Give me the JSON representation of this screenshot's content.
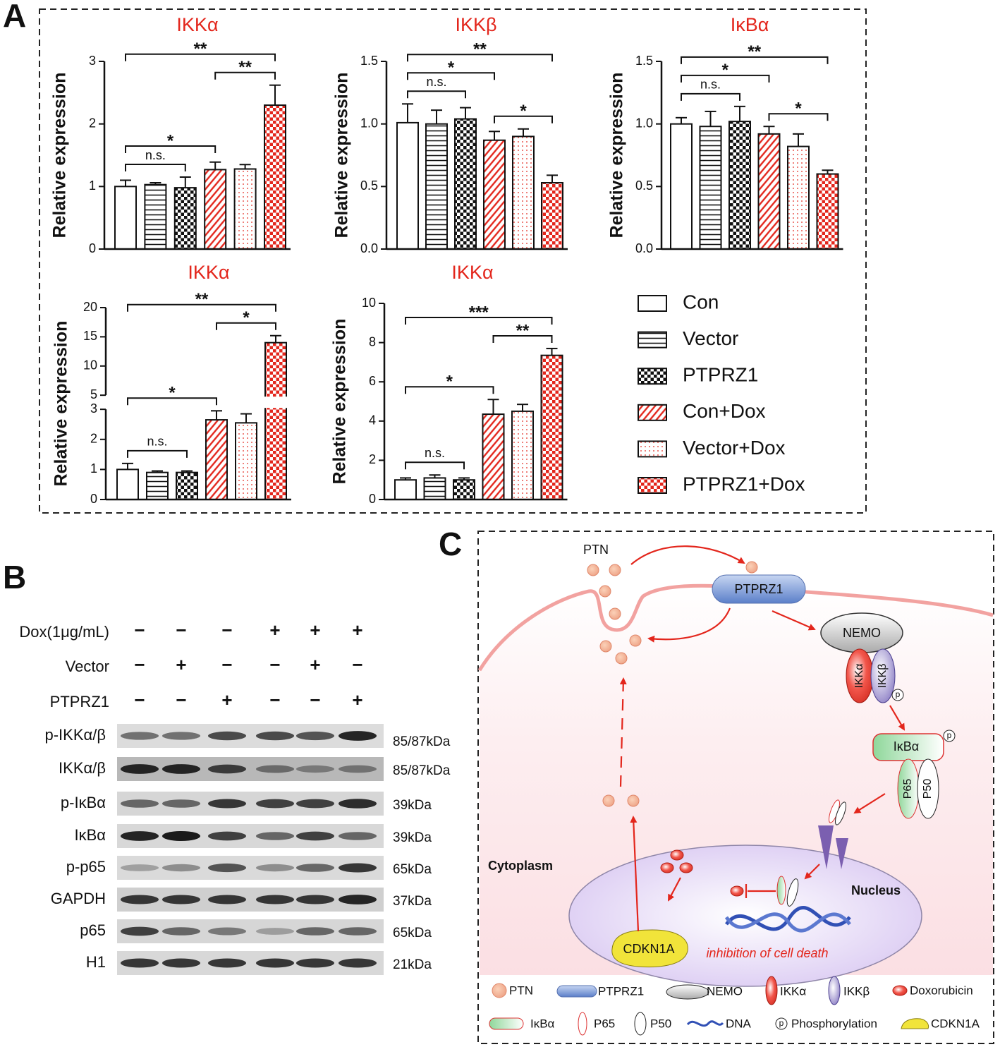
{
  "panels": {
    "a": "A",
    "b": "B",
    "c": "C"
  },
  "chart_data": [
    {
      "type": "bar",
      "title": "IKKα",
      "ylabel": "Relative expression",
      "values": [
        1.0,
        1.03,
        0.98,
        1.27,
        1.28,
        2.3
      ],
      "errors": [
        0.1,
        0.03,
        0.17,
        0.12,
        0.07,
        0.32
      ],
      "ylim": [
        0,
        3
      ],
      "yticks": [
        0,
        1,
        2,
        3
      ],
      "significance": [
        {
          "from": 0,
          "to": 2,
          "label": "n.s."
        },
        {
          "from": 0,
          "to": 3,
          "label": "*"
        },
        {
          "from": 3,
          "to": 5,
          "label": "**"
        },
        {
          "from": 0,
          "to": 5,
          "label": "**"
        }
      ]
    },
    {
      "type": "bar",
      "title": "IKKβ",
      "ylabel": "Relative expression",
      "values": [
        1.01,
        1.0,
        1.04,
        0.87,
        0.9,
        0.53
      ],
      "errors": [
        0.15,
        0.11,
        0.09,
        0.07,
        0.06,
        0.06
      ],
      "ylim": [
        0,
        1.5
      ],
      "yticks": [
        {
          "value": 0,
          "label": "0.0"
        },
        0.5,
        {
          "value": 1,
          "label": "1.0"
        },
        1.5
      ],
      "significance": [
        {
          "from": 0,
          "to": 2,
          "label": "n.s."
        },
        {
          "from": 0,
          "to": 3,
          "label": "*"
        },
        {
          "from": 3,
          "to": 5,
          "label": "*"
        },
        {
          "from": 0,
          "to": 5,
          "label": "**"
        }
      ]
    },
    {
      "type": "bar",
      "title": "IκBα",
      "ylabel": "Relative expression",
      "values": [
        1.0,
        0.98,
        1.02,
        0.92,
        0.82,
        0.6
      ],
      "errors": [
        0.05,
        0.12,
        0.12,
        0.06,
        0.1,
        0.03
      ],
      "ylim": [
        0,
        1.5
      ],
      "yticks": [
        {
          "value": 0,
          "label": "0.0"
        },
        0.5,
        {
          "value": 1,
          "label": "1.0"
        },
        1.5
      ],
      "significance": [
        {
          "from": 0,
          "to": 2,
          "label": "n.s."
        },
        {
          "from": 0,
          "to": 3,
          "label": "*"
        },
        {
          "from": 3,
          "to": 5,
          "label": "*"
        },
        {
          "from": 0,
          "to": 5,
          "label": "**"
        }
      ]
    },
    {
      "type": "bar",
      "title": "IKKα",
      "ylabel": "Relative expression",
      "values": [
        1.0,
        0.9,
        0.9,
        2.65,
        2.55,
        14.0
      ],
      "errors": [
        0.2,
        0.05,
        0.05,
        0.3,
        0.3,
        1.2
      ],
      "ylim": [
        0,
        20
      ],
      "ybreak": [
        3,
        5
      ],
      "yticks": [
        0,
        1,
        2,
        3,
        5,
        10,
        15,
        20
      ],
      "significance": [
        {
          "from": 0,
          "to": 2,
          "label": "n.s."
        },
        {
          "from": 0,
          "to": 3,
          "label": "*"
        },
        {
          "from": 3,
          "to": 5,
          "label": "*"
        },
        {
          "from": 0,
          "to": 5,
          "label": "**"
        }
      ]
    },
    {
      "type": "bar",
      "title": "IKKα",
      "ylabel": "Relative expression",
      "values": [
        1.0,
        1.1,
        1.0,
        4.35,
        4.5,
        7.35
      ],
      "errors": [
        0.1,
        0.15,
        0.1,
        0.75,
        0.35,
        0.35
      ],
      "ylim": [
        0,
        10
      ],
      "yticks": [
        0,
        2,
        4,
        6,
        8,
        10
      ],
      "significance": [
        {
          "from": 0,
          "to": 2,
          "label": "n.s."
        },
        {
          "from": 0,
          "to": 3,
          "label": "*"
        },
        {
          "from": 3,
          "to": 5,
          "label": "**"
        },
        {
          "from": 0,
          "to": 5,
          "label": "***"
        }
      ]
    }
  ],
  "legend": [
    "Con",
    "Vector",
    "PTPRZ1",
    "Con+Dox",
    "Vector+Dox",
    "PTPRZ1+Dox"
  ],
  "western_blot": {
    "conditions": [
      {
        "label": "Dox(1μg/mL)",
        "signs": [
          "−",
          "−",
          "−",
          "+",
          "+",
          "+"
        ]
      },
      {
        "label": "Vector",
        "signs": [
          "−",
          "+",
          "−",
          "−",
          "+",
          "−"
        ]
      },
      {
        "label": "PTPRZ1",
        "signs": [
          "−",
          "−",
          "+",
          "−",
          "−",
          "+"
        ]
      }
    ],
    "blots": [
      {
        "label": "p-IKKα/β",
        "size": "85/87kDa"
      },
      {
        "label": "IKKα/β",
        "size": "85/87kDa"
      },
      {
        "label": "p-IκBα",
        "size": "39kDa"
      },
      {
        "label": "IκBα",
        "size": "39kDa"
      },
      {
        "label": "p-p65",
        "size": "65kDa"
      },
      {
        "label": "GAPDH",
        "size": "37kDa"
      },
      {
        "label": "p65",
        "size": "65kDa"
      },
      {
        "label": "H1",
        "size": "21kDa"
      }
    ]
  },
  "diagram": {
    "ptn": "PTN",
    "ptprz1": "PTPRZ1",
    "nemo": "NEMO",
    "ikka": "IKKα",
    "ikkb": "IKKβ",
    "phospho": "p",
    "ikba": "IκBα",
    "p65": "P65",
    "p50": "P50",
    "cytoplasm": "Cytoplasm",
    "nucleus": "Nucleus",
    "cdkn1a": "CDKN1A",
    "caption": "inhibition of cell death",
    "legend": [
      "PTN",
      "PTPRZ1",
      "NEMO",
      "IKKα",
      "IKKβ",
      "Doxorubicin",
      "IκBα",
      "P65",
      "P50",
      "DNA",
      "Phosphorylation",
      "CDKN1A"
    ]
  }
}
